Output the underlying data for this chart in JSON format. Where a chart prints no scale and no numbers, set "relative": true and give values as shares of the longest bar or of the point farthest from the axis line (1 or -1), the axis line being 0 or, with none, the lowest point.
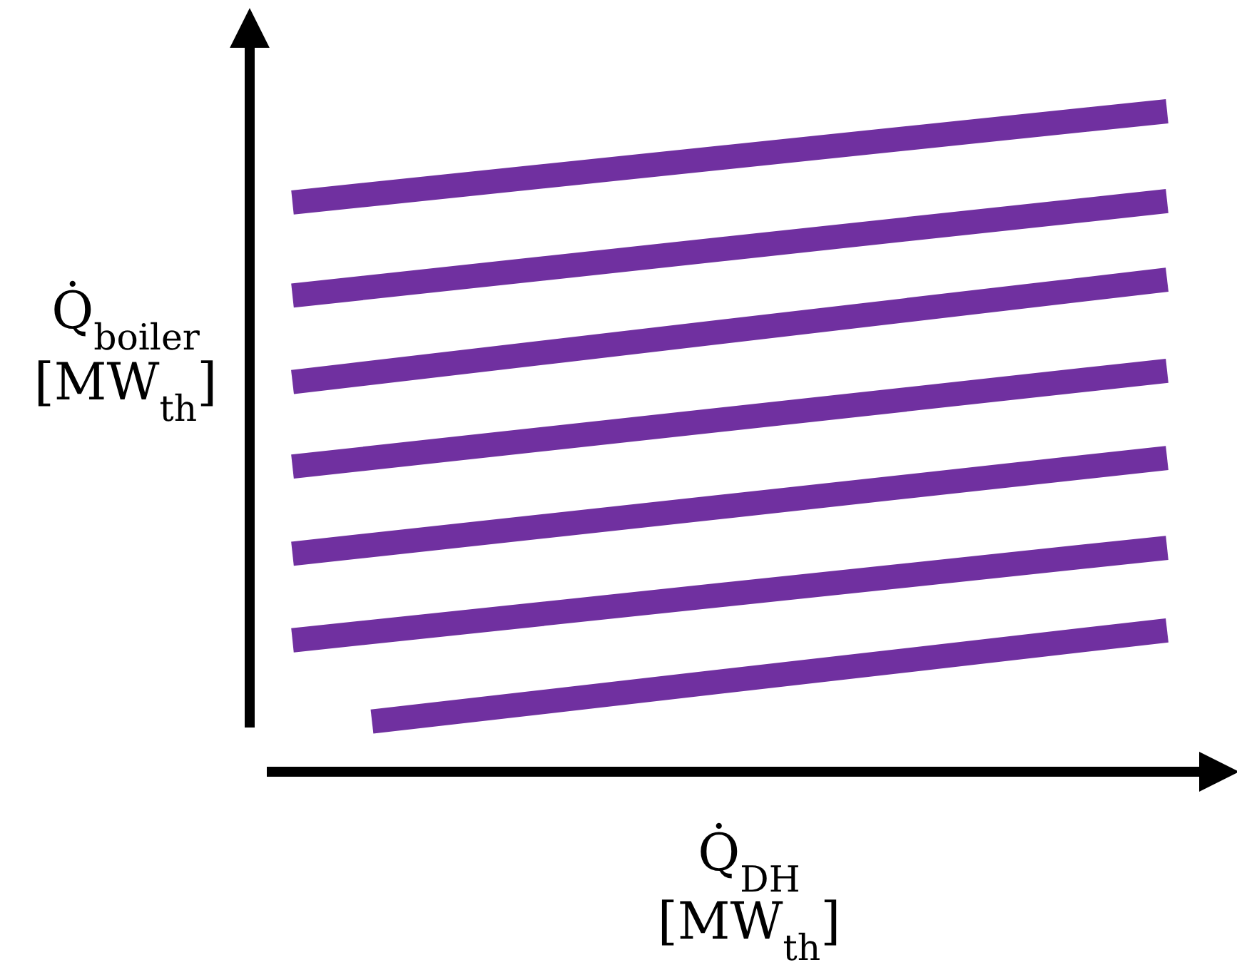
{
  "chart_data": {
    "type": "line",
    "relative": true,
    "xlabel": "Q̇$_{DH}$\n[MW$_{th}$]",
    "ylabel": "Q̇$_{boiler}$\n[MW$_{th}$]",
    "categories": [
      null,
      null,
      null,
      null,
      null,
      null,
      null,
      null,
      null,
      null,
      null,
      null
    ],
    "series": [
      {
        "color": "#7030a0",
        "values": [
          0.862,
          null,
          null,
          null,
          null,
          null,
          null,
          null,
          null,
          null,
          null,
          1.0
        ]
      },
      {
        "color": "#7030a0",
        "values": [
          0.721,
          null,
          null,
          null,
          null,
          null,
          null,
          null,
          null,
          null,
          null,
          0.864
        ]
      },
      {
        "color": "#7030a0",
        "values": [
          0.59,
          null,
          null,
          null,
          null,
          null,
          null,
          null,
          null,
          null,
          null,
          0.745
        ]
      },
      {
        "color": "#7030a0",
        "values": [
          0.462,
          null,
          null,
          null,
          null,
          null,
          null,
          null,
          null,
          null,
          null,
          0.607
        ]
      },
      {
        "color": "#7030a0",
        "values": [
          0.33,
          null,
          null,
          null,
          null,
          null,
          null,
          null,
          null,
          null,
          null,
          0.475
        ]
      },
      {
        "color": "#7030a0",
        "values": [
          0.199,
          null,
          null,
          null,
          null,
          null,
          null,
          null,
          null,
          null,
          null,
          0.339
        ]
      },
      {
        "color": "#7030a0",
        "values": [
          null,
          0.076,
          null,
          null,
          null,
          null,
          null,
          null,
          null,
          null,
          null,
          0.214
        ]
      }
    ]
  }
}
